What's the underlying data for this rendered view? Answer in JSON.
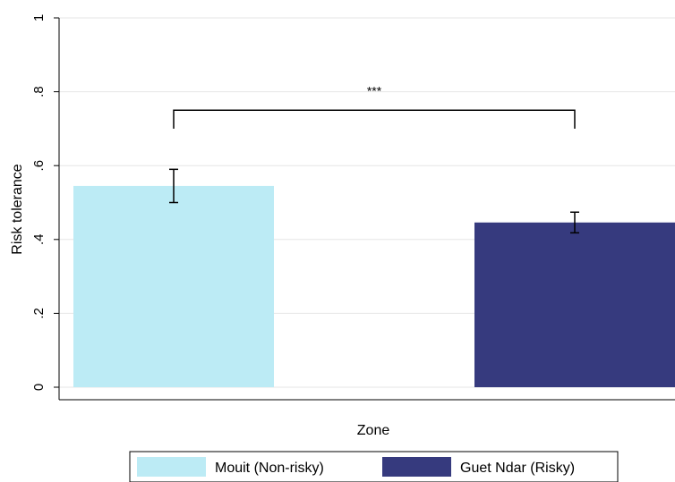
{
  "chart_data": {
    "type": "bar",
    "xlabel": "Zone",
    "ylabel": "Risk tolerance",
    "ylim": [
      0,
      1
    ],
    "yticks": [
      {
        "value": 0,
        "label": "0"
      },
      {
        "value": 0.2,
        "label": ".2"
      },
      {
        "value": 0.4,
        "label": ".4"
      },
      {
        "value": 0.6,
        "label": ".6"
      },
      {
        "value": 0.8,
        "label": ".8"
      },
      {
        "value": 1,
        "label": "1"
      }
    ],
    "grid": true,
    "series": [
      {
        "name": "Mouit (Non-risky)",
        "value": 0.545,
        "ci_low": 0.5,
        "ci_high": 0.59,
        "color": "#bcebf5"
      },
      {
        "name": "Guet Ndar (Risky)",
        "value": 0.446,
        "ci_low": 0.418,
        "ci_high": 0.474,
        "color": "#363a7e"
      }
    ],
    "annotation": {
      "text": "***",
      "bracket_top": 0.75,
      "bracket_bottom": 0.7
    },
    "legend_position": "bottom"
  }
}
